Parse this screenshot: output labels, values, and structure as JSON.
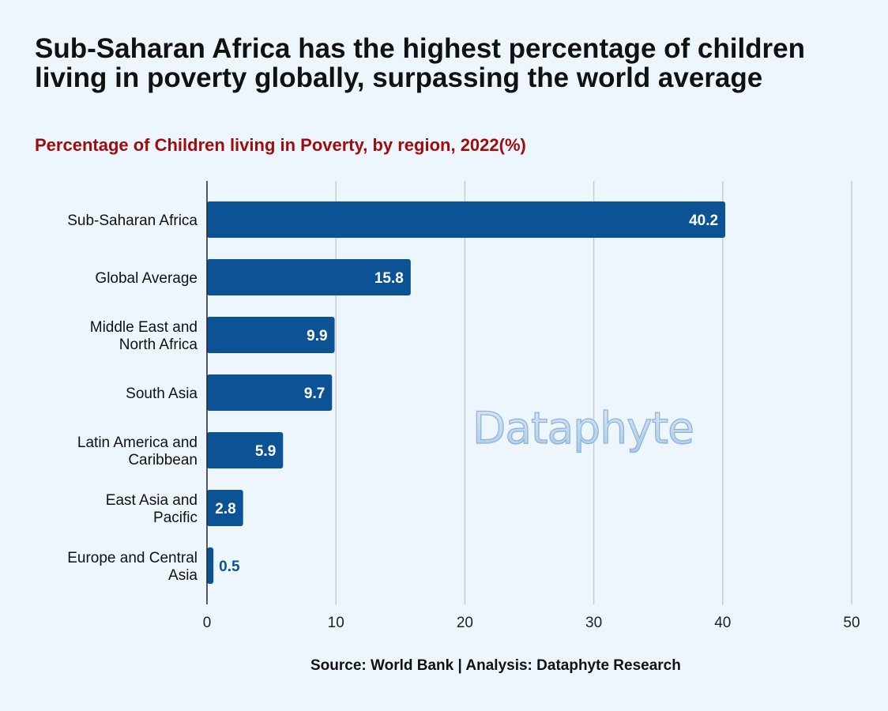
{
  "title": "Sub-Saharan Africa has the highest percentage of children living in poverty globally, surpassing the world average",
  "subtitle": "Percentage of Children living in Poverty, by region, 2022(%)",
  "source": "Source: World Bank | Analysis: Dataphyte Research",
  "watermark": "Dataphyte",
  "colors": {
    "bar": "#0b5394",
    "label_inside": "#ffffff",
    "label_outside": "#0b5394",
    "subtitle": "#a00c0c",
    "grid": "#c6cdd6",
    "background": "#eef6fd"
  },
  "chart_data": {
    "type": "bar",
    "orientation": "horizontal",
    "categories": [
      [
        "Sub-Saharan Africa"
      ],
      [
        "Global Average"
      ],
      [
        "Middle East and",
        "North Africa"
      ],
      [
        "South Asia"
      ],
      [
        "Latin America and",
        "Caribbean"
      ],
      [
        "East Asia and",
        "Pacific"
      ],
      [
        "Europe and Central",
        "Asia"
      ]
    ],
    "values": [
      40.2,
      15.8,
      9.9,
      9.7,
      5.9,
      2.8,
      0.5
    ],
    "data_labels": [
      "40.2",
      "15.8",
      "9.9",
      "9.7",
      "5.9",
      "2.8",
      "0.5"
    ],
    "xlim": [
      0,
      50
    ],
    "xticks": [
      0,
      10,
      20,
      30,
      40,
      50
    ],
    "xlabel": "",
    "ylabel": "",
    "grid": "vertical",
    "legend": "none"
  }
}
